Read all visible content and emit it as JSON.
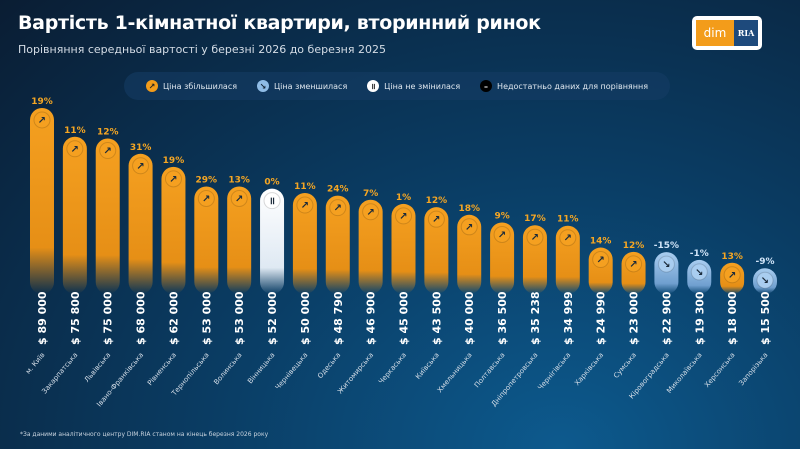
{
  "header": {
    "title": "Вартість 1-кімнатної квартири, вторинний ринок",
    "subtitle": "Порівняння середньої вартості у березні 2026 до березня 2025",
    "logo_left": "dim",
    "logo_right": "RIA"
  },
  "legend": [
    {
      "label": "Ціна збільшилася",
      "color": "#f39c1a",
      "icon": "arrow-up-right-icon"
    },
    {
      "label": "Ціна зменшилася",
      "color": "#8fbce6",
      "icon": "arrow-down-right-icon"
    },
    {
      "label": "Ціна не змінилася",
      "color": "#ffffff",
      "icon": "pause-icon"
    },
    {
      "label": "Недостатньо даних для порівняння",
      "color": "#000000",
      "icon": "minus-icon"
    }
  ],
  "footnote": "*За даними аналітичного центру DIM.RIA станом на кінець березня 2026 року",
  "chart_data": {
    "type": "bar",
    "title": "Вартість 1-кімнатної квартири, вторинний ринок",
    "ylabel": "USD",
    "ylim": [
      0,
      89000
    ],
    "categories": [
      "м. Київ",
      "Закарпатська",
      "Львівська",
      "Івано-Франківська",
      "Рівненська",
      "Тернопільська",
      "Волинська",
      "Вінницька",
      "Чернівецька",
      "Одеська",
      "Житомирська",
      "Черкаська",
      "Київська",
      "Хмельницька",
      "Полтавська",
      "Дніпропетровська",
      "Чернігівська",
      "Харківська",
      "Сумська",
      "Кіровоградська",
      "Миколаївська",
      "Херсонська",
      "Запорізька"
    ],
    "values": [
      89000,
      75800,
      75000,
      68000,
      62000,
      53000,
      53000,
      52000,
      50000,
      48790,
      46900,
      45000,
      43500,
      40000,
      36500,
      35238,
      34999,
      24990,
      23000,
      22900,
      19300,
      18000,
      15500
    ],
    "value_labels": [
      "$ 89 000",
      "$ 75 800",
      "$ 75 000",
      "$ 68 000",
      "$ 62 000",
      "$ 53 000",
      "$ 53 000",
      "$ 52 000",
      "$ 50 000",
      "$ 48 790",
      "$ 46 900",
      "$ 45 000",
      "$ 43 500",
      "$ 40 000",
      "$ 36 500",
      "$ 35 238",
      "$ 34 999",
      "$ 24 990",
      "$ 23 000",
      "$ 22 900",
      "$ 19 300",
      "$ 18 000",
      "$ 15 500"
    ],
    "change_labels": [
      "19%",
      "11%",
      "12%",
      "31%",
      "19%",
      "29%",
      "13%",
      "0%",
      "11%",
      "24%",
      "7%",
      "1%",
      "12%",
      "18%",
      "9%",
      "17%",
      "11%",
      "14%",
      "12%",
      "-15%",
      "-1%",
      "13%",
      "-9%"
    ],
    "change_pct": [
      19,
      11,
      12,
      31,
      19,
      29,
      13,
      0,
      11,
      24,
      7,
      1,
      12,
      18,
      9,
      17,
      11,
      14,
      12,
      -15,
      -1,
      13,
      -9
    ]
  }
}
